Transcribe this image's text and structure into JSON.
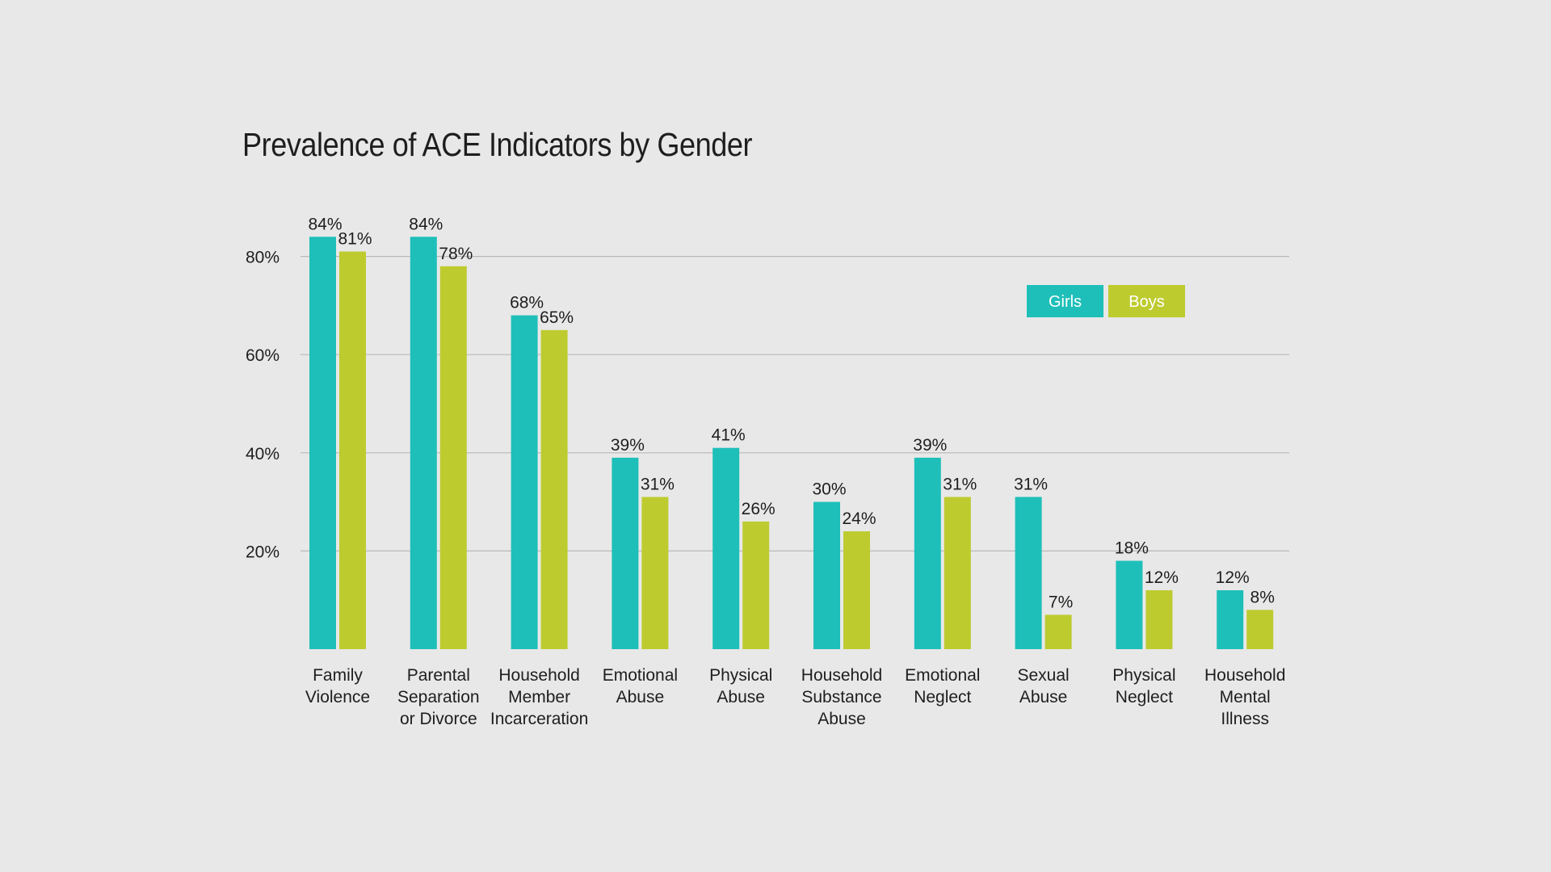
{
  "chart_data": {
    "type": "bar",
    "title": "Prevalence of ACE Indicators by Gender",
    "xlabel": "",
    "ylabel": "",
    "ylim": [
      0,
      80
    ],
    "yticks": [
      20,
      40,
      60,
      80
    ],
    "ytick_labels": [
      "20%",
      "40%",
      "60%",
      "80%"
    ],
    "grid": true,
    "legend_position": "top-right",
    "categories": [
      [
        "Family",
        "Violence"
      ],
      [
        "Parental",
        "Separation",
        "or Divorce"
      ],
      [
        "Household",
        "Member",
        "Incarceration"
      ],
      [
        "Emotional",
        "Abuse"
      ],
      [
        "Physical",
        "Abuse"
      ],
      [
        "Household",
        "Substance",
        "Abuse"
      ],
      [
        "Emotional",
        "Neglect"
      ],
      [
        "Sexual",
        "Abuse"
      ],
      [
        "Physical",
        "Neglect"
      ],
      [
        "Household",
        "Mental",
        "Illness"
      ]
    ],
    "series": [
      {
        "name": "Girls",
        "color": "#1ebfb9",
        "values": [
          84,
          84,
          68,
          39,
          41,
          30,
          39,
          31,
          18,
          12
        ],
        "labels": [
          "84%",
          "84%",
          "68%",
          "39%",
          "41%",
          "30%",
          "39%",
          "31%",
          "18%",
          "12%"
        ]
      },
      {
        "name": "Boys",
        "color": "#bdcb2f",
        "values": [
          81,
          78,
          65,
          31,
          26,
          24,
          31,
          7,
          12,
          8
        ],
        "labels": [
          "81%",
          "78%",
          "65%",
          "31%",
          "26%",
          "24%",
          "31%",
          "7%",
          "12%",
          "8%"
        ]
      }
    ]
  }
}
